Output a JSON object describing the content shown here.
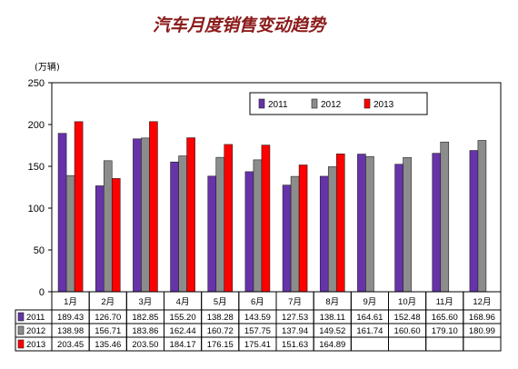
{
  "chart_data": {
    "type": "bar",
    "title": "汽车月度销售变动趋势",
    "unit_label": "(万辆)",
    "ylim": [
      0,
      250
    ],
    "yticks": [
      0,
      50,
      100,
      150,
      200,
      250
    ],
    "grid": false,
    "legend_position": "top-right",
    "categories": [
      "1月",
      "2月",
      "3月",
      "4月",
      "5月",
      "6月",
      "7月",
      "8月",
      "9月",
      "10月",
      "11月",
      "12月"
    ],
    "series": [
      {
        "name": "2011",
        "color": "#6633aa",
        "values": [
          189.43,
          126.7,
          182.85,
          155.2,
          138.28,
          143.59,
          127.53,
          138.11,
          164.61,
          152.48,
          165.6,
          168.96
        ],
        "labels": [
          "189.43",
          "126.70",
          "182.85",
          "155.20",
          "138.28",
          "143.59",
          "127.53",
          "138.11",
          "164.61",
          "152.48",
          "165.60",
          "168.96"
        ]
      },
      {
        "name": "2012",
        "color": "#8c8c8c",
        "values": [
          138.98,
          156.71,
          183.86,
          162.44,
          160.72,
          157.75,
          137.94,
          149.52,
          161.74,
          160.6,
          179.1,
          180.99
        ],
        "labels": [
          "138.98",
          "156.71",
          "183.86",
          "162.44",
          "160.72",
          "157.75",
          "137.94",
          "149.52",
          "161.74",
          "160.60",
          "179.10",
          "180.99"
        ]
      },
      {
        "name": "2013",
        "color": "#ff0000",
        "values": [
          203.45,
          135.46,
          203.5,
          184.17,
          176.15,
          175.41,
          151.63,
          164.89,
          null,
          null,
          null,
          null
        ],
        "labels": [
          "203.45",
          "135.46",
          "203.50",
          "184.17",
          "176.15",
          "175.41",
          "151.63",
          "164.89",
          "",
          "",
          "",
          ""
        ]
      }
    ]
  }
}
